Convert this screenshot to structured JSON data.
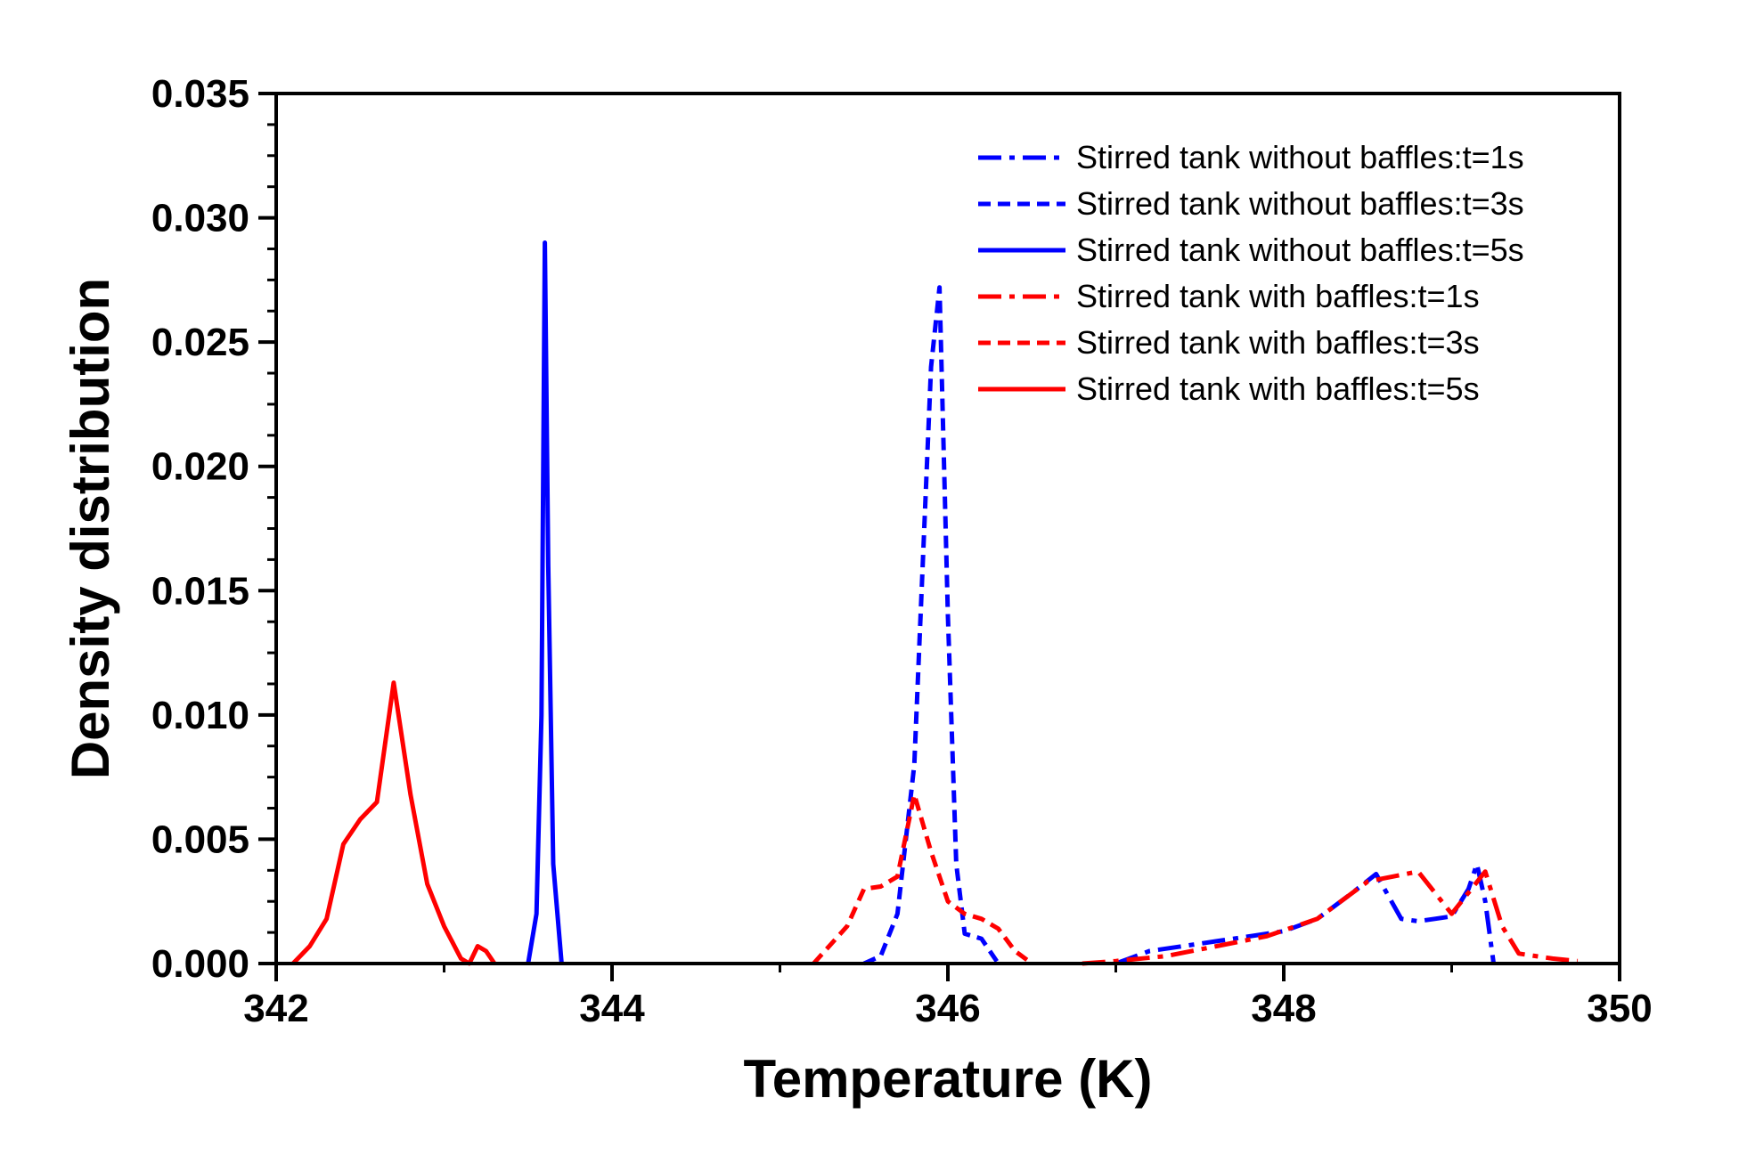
{
  "chart_data": {
    "type": "line",
    "title": "",
    "xlabel": "Temperature (K)",
    "ylabel": "Density distribution",
    "xlim": [
      342,
      350
    ],
    "ylim": [
      0,
      0.035
    ],
    "x_ticks": [
      342,
      344,
      346,
      348,
      350
    ],
    "x_tick_labels": [
      "342",
      "344",
      "346",
      "348",
      "350"
    ],
    "y_ticks": [
      0,
      0.005,
      0.01,
      0.015,
      0.02,
      0.025,
      0.03,
      0.035
    ],
    "y_tick_labels": [
      "0.000",
      "0.005",
      "0.010",
      "0.015",
      "0.020",
      "0.025",
      "0.030",
      "0.035"
    ],
    "grid": false,
    "legend_position": "top-right",
    "series": [
      {
        "name": "Stirred tank without baffles:t=1s",
        "color": "#0000ff",
        "dash": "dash-dot",
        "x": [
          347.0,
          347.2,
          347.4,
          347.6,
          347.8,
          348.0,
          348.2,
          348.4,
          348.55,
          348.7,
          348.8,
          348.9,
          349.0,
          349.1,
          349.15,
          349.2,
          349.25
        ],
        "y": [
          0.0,
          0.0005,
          0.0007,
          0.0009,
          0.0011,
          0.0013,
          0.0018,
          0.0028,
          0.0036,
          0.0018,
          0.0017,
          0.0018,
          0.0019,
          0.003,
          0.004,
          0.0025,
          0.0
        ]
      },
      {
        "name": "Stirred tank without baffles:t=3s",
        "color": "#0000ff",
        "dash": "dash",
        "x": [
          345.5,
          345.6,
          345.7,
          345.8,
          345.85,
          345.9,
          345.95,
          346.0,
          346.05,
          346.1,
          346.2,
          346.3
        ],
        "y": [
          0.0,
          0.0003,
          0.002,
          0.008,
          0.016,
          0.024,
          0.0272,
          0.014,
          0.004,
          0.0012,
          0.001,
          0.0
        ]
      },
      {
        "name": "Stirred tank without baffles:t=5s",
        "color": "#0000ff",
        "dash": "solid",
        "x": [
          343.5,
          343.55,
          343.58,
          343.6,
          343.62,
          343.65,
          343.7
        ],
        "y": [
          0.0,
          0.002,
          0.01,
          0.029,
          0.016,
          0.004,
          0.0
        ]
      },
      {
        "name": "Stirred tank with baffles:t=1s",
        "color": "#ff0000",
        "dash": "dash-dot",
        "x": [
          346.8,
          347.0,
          347.3,
          347.6,
          347.9,
          348.2,
          348.5,
          348.8,
          349.0,
          349.2,
          349.3,
          349.4,
          349.6,
          349.75
        ],
        "y": [
          0.0,
          0.0001,
          0.0003,
          0.0007,
          0.0011,
          0.0018,
          0.0033,
          0.0037,
          0.002,
          0.0037,
          0.0015,
          0.0004,
          0.0002,
          0.0001
        ]
      },
      {
        "name": "Stirred tank with baffles:t=3s",
        "color": "#ff0000",
        "dash": "dash",
        "x": [
          345.2,
          345.4,
          345.5,
          345.6,
          345.7,
          345.8,
          345.9,
          346.0,
          346.1,
          346.2,
          346.3,
          346.4,
          346.5
        ],
        "y": [
          0.0,
          0.0015,
          0.003,
          0.0031,
          0.0035,
          0.0068,
          0.0045,
          0.0025,
          0.002,
          0.0018,
          0.0014,
          0.0005,
          0.0
        ]
      },
      {
        "name": "Stirred tank with baffles:t=5s",
        "color": "#ff0000",
        "dash": "solid",
        "x": [
          342.1,
          342.2,
          342.3,
          342.4,
          342.5,
          342.6,
          342.7,
          342.8,
          342.9,
          343.0,
          343.1,
          343.15,
          343.2,
          343.25,
          343.3
        ],
        "y": [
          0.0,
          0.0007,
          0.0018,
          0.0048,
          0.0058,
          0.0065,
          0.0113,
          0.0068,
          0.0032,
          0.0015,
          0.0002,
          0.0,
          0.0007,
          0.0005,
          0.0
        ]
      }
    ]
  }
}
